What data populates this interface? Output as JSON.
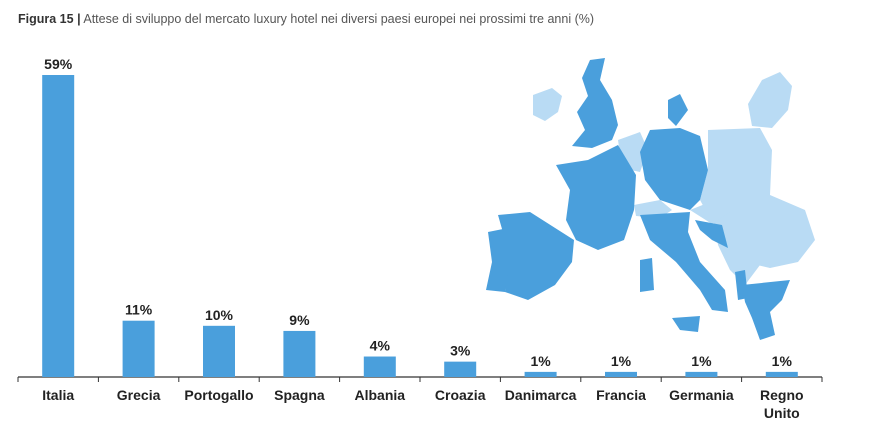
{
  "title": {
    "prefix": "Figura 15",
    "separator": "|",
    "text": "Attese di sviluppo del mercato luxury hotel nei diversi paesi europei nei prossimi tre anni (%)"
  },
  "colors": {
    "bar": "#4a9fdc",
    "map_highlight": "#4a9fdc",
    "map_other": "#b9dbf4",
    "axis": "#333333"
  },
  "chart_data": {
    "type": "bar",
    "title": "Attese di sviluppo del mercato luxury hotel nei diversi paesi europei nei prossimi tre anni (%)",
    "categories": [
      "Italia",
      "Grecia",
      "Portogallo",
      "Spagna",
      "Albania",
      "Croazia",
      "Danimarca",
      "Francia",
      "Germania",
      "Regno Unito"
    ],
    "values": [
      59,
      11,
      10,
      9,
      4,
      3,
      1,
      1,
      1,
      1
    ],
    "value_labels": [
      "59%",
      "11%",
      "10%",
      "9%",
      "4%",
      "3%",
      "1%",
      "1%",
      "1%",
      "1%"
    ],
    "xlabel": "",
    "ylabel": "",
    "ylim": [
      0,
      59
    ],
    "grid": false
  }
}
